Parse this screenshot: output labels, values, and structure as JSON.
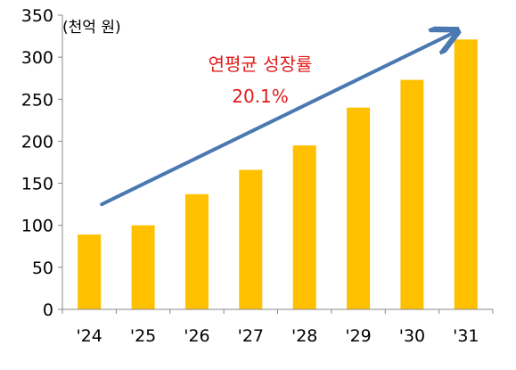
{
  "chart_data": {
    "type": "bar",
    "title": "",
    "unit_label": "(천억 원)",
    "xlabel": "",
    "ylabel": "",
    "categories": [
      "'24",
      "'25",
      "'26",
      "'27",
      "'28",
      "'29",
      "'30",
      "'31"
    ],
    "values": [
      89,
      100,
      137,
      166,
      195,
      240,
      273,
      321
    ],
    "ylim": [
      0,
      350
    ],
    "yticks": [
      0,
      50,
      100,
      150,
      200,
      250,
      300,
      350
    ],
    "grid": false,
    "legend": "none",
    "annotation": {
      "line1": "연평균 성장률",
      "line2": "20.1%",
      "color": "#e31c1c"
    },
    "trend_arrow": {
      "color": "#4a78b0",
      "from_category": "'24",
      "from_value": 125,
      "to_category": "'31",
      "to_value": 330
    },
    "colors": {
      "bar": "#ffc000",
      "axis": "#888888",
      "text": "#000000"
    }
  }
}
